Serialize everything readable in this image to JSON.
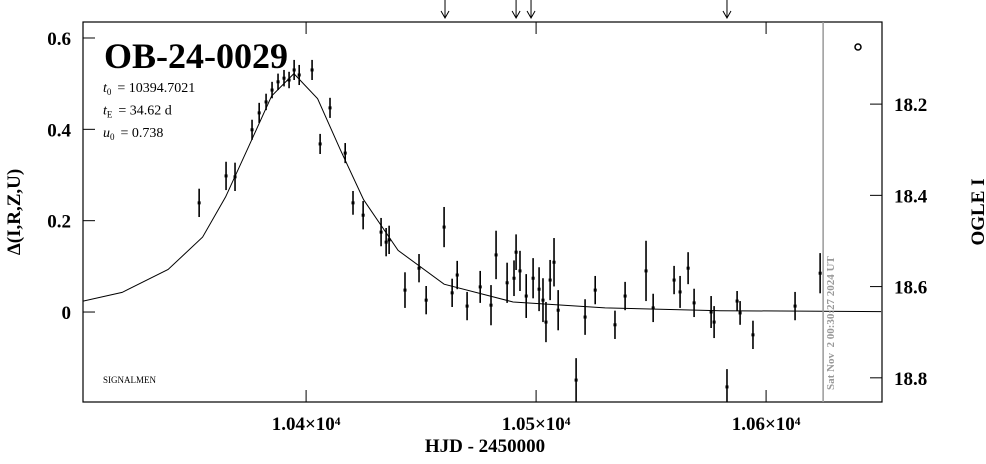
{
  "chart_data": {
    "type": "errorbar",
    "title": "OB-24-0029",
    "params": [
      {
        "symbol": "t",
        "subscript": "0",
        "text": "= 10394.7021"
      },
      {
        "symbol": "t",
        "subscript": "E",
        "text": "= 34.62 d"
      },
      {
        "symbol": "u",
        "subscript": "0",
        "text": "= 0.738"
      }
    ],
    "footnote": "SIGNALMEN",
    "x_label": "HJD - 2450000",
    "y_label": "Δ(I,R,Z,U)",
    "y2_label": "OGLE I",
    "xlim": [
      10303.0,
      10650.4
    ],
    "xticks": [
      {
        "value": 10400,
        "label": "1.04×10⁴"
      },
      {
        "value": 10500,
        "label": "1.05×10⁴"
      },
      {
        "value": 10600,
        "label": "1.06×10⁴"
      }
    ],
    "ylim": [
      -0.197,
      0.635
    ],
    "yticks": [
      0,
      0.2,
      0.4,
      0.6
    ],
    "y2lim": [
      18.853,
      18.02
    ],
    "y2ticks": [
      18.2,
      18.4,
      18.6,
      18.8
    ],
    "current_time": {
      "label": "Sat Nov  2 00:30:27 2024 UT",
      "x": 10624.8
    },
    "arrows": [
      10460.4,
      10491.3,
      10497.8,
      10583.0
    ],
    "model": {
      "color": "#000000",
      "x": [
        10303,
        10320,
        10340,
        10355,
        10365,
        10375,
        10385,
        10394.7,
        10405,
        10415,
        10425,
        10440,
        10460,
        10490,
        10530,
        10580,
        10650
      ],
      "values": [
        0.024,
        0.043,
        0.093,
        0.164,
        0.252,
        0.362,
        0.473,
        0.522,
        0.467,
        0.354,
        0.246,
        0.135,
        0.061,
        0.022,
        0.009,
        0.003,
        0.001
      ]
    },
    "series": [
      {
        "color": "#000000",
        "x": [
          10353.5,
          10365.2,
          10369.1,
          10376.5,
          10379.6,
          10382.6,
          10385.2,
          10387.8,
          10390.4,
          10392.6,
          10394.8,
          10397.0,
          10402.6,
          10406.1,
          10410.4,
          10417.0,
          10420.4,
          10424.8,
          10432.6,
          10434.8,
          10436.1,
          10443.0,
          10449.1,
          10452.2,
          10460.0,
          10463.5,
          10465.7,
          10470.0,
          10475.7,
          10480.4,
          10482.6,
          10487.4,
          10490.4,
          10491.3,
          10493.0,
          10495.7,
          10498.7,
          10501.3,
          10503.0,
          10504.3,
          10506.1,
          10507.8,
          10509.6,
          10517.4,
          10521.3,
          10525.7,
          10534.3,
          10538.7,
          10547.8,
          10550.9,
          10560.0,
          10562.6,
          10566.1,
          10568.7,
          10576.1,
          10577.4,
          10583.0,
          10587.4,
          10588.7,
          10594.3,
          10612.6,
          10623.5
        ],
        "values": [
          0.239,
          0.298,
          0.296,
          0.399,
          0.436,
          0.46,
          0.486,
          0.504,
          0.512,
          0.508,
          0.53,
          0.519,
          0.53,
          0.368,
          0.447,
          0.348,
          0.239,
          0.212,
          0.175,
          0.153,
          0.158,
          0.048,
          0.096,
          0.026,
          0.186,
          0.042,
          0.081,
          0.013,
          0.055,
          0.015,
          0.125,
          0.064,
          0.074,
          0.131,
          0.09,
          0.035,
          0.074,
          0.05,
          0.026,
          -0.022,
          0.07,
          0.109,
          0.004,
          -0.149,
          -0.011,
          0.048,
          -0.028,
          0.035,
          0.09,
          0.009,
          0.07,
          0.044,
          0.096,
          0.02,
          0.0,
          -0.022,
          -0.164,
          0.024,
          -0.002,
          -0.05,
          0.013,
          0.085
        ],
        "errors": [
          0.031,
          0.031,
          0.031,
          0.022,
          0.022,
          0.018,
          0.018,
          0.018,
          0.018,
          0.018,
          0.022,
          0.022,
          0.022,
          0.022,
          0.022,
          0.022,
          0.026,
          0.031,
          0.031,
          0.031,
          0.031,
          0.039,
          0.031,
          0.031,
          0.044,
          0.031,
          0.031,
          0.031,
          0.035,
          0.044,
          0.053,
          0.044,
          0.039,
          0.039,
          0.044,
          0.048,
          0.044,
          0.048,
          0.048,
          0.044,
          0.044,
          0.053,
          0.044,
          0.048,
          0.039,
          0.031,
          0.031,
          0.031,
          0.066,
          0.031,
          0.031,
          0.035,
          0.035,
          0.031,
          0.035,
          0.035,
          0.039,
          0.022,
          0.026,
          0.031,
          0.031,
          0.044
        ]
      }
    ]
  }
}
